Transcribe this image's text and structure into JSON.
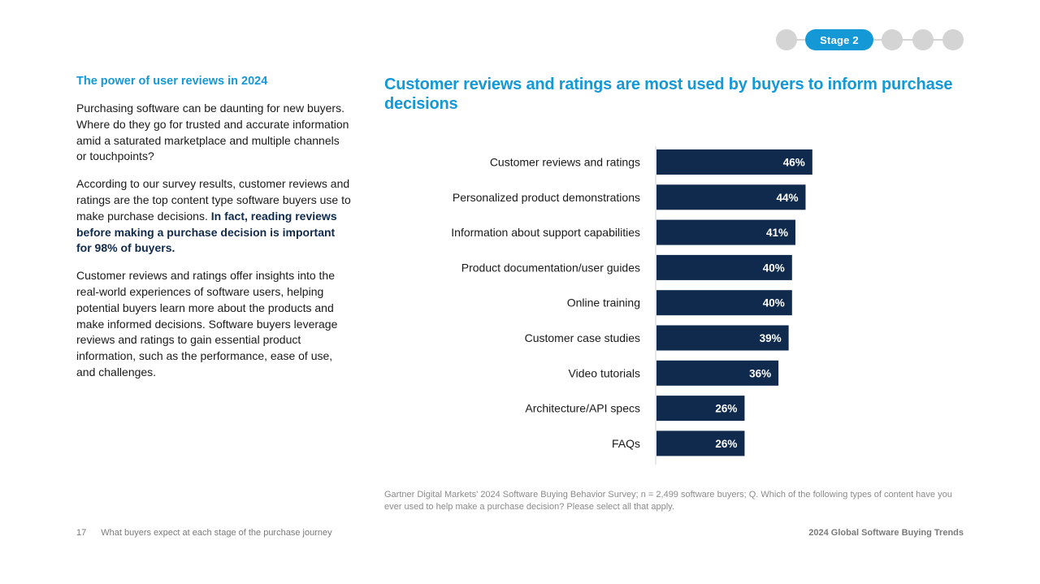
{
  "stage_nav": {
    "active_label": "Stage 2"
  },
  "side": {
    "heading": "The power of user reviews in 2024",
    "p1": "Purchasing software can be daunting for new buyers. Where do they go for trusted and accurate information amid a saturated marketplace and multiple channels or touchpoints?",
    "p2_text": "According to our survey results, customer reviews and ratings are the top content type software buyers use to make purchase decisions. ",
    "p2_strong": "In fact, reading reviews before making a purchase decision is important for 98% of buyers.",
    "p3": "Customer reviews and ratings offer insights into the real-world experiences of software users, helping potential buyers learn more about the products and make informed decisions. Software buyers leverage reviews and ratings to gain essential product information, such as the performance, ease of use, and challenges."
  },
  "chart_data": {
    "type": "bar",
    "orientation": "horizontal",
    "title": "Customer reviews and ratings are most used by buyers to inform purchase decisions",
    "categories": [
      "Customer reviews and ratings",
      "Personalized product demonstrations",
      "Information about support capabilities",
      "Product documentation/user guides",
      "Online training",
      "Customer case studies",
      "Video tutorials",
      "Architecture/API specs",
      "FAQs"
    ],
    "values": [
      46,
      44,
      41,
      40,
      40,
      39,
      36,
      26,
      26
    ],
    "data_labels": [
      "46%",
      "44%",
      "41%",
      "40%",
      "40%",
      "39%",
      "36%",
      "26%",
      "26%"
    ],
    "unit": "%",
    "xlim": [
      0,
      100
    ],
    "grid": false,
    "bar_color": "#0f2a4d"
  },
  "source": "Gartner Digital Markets' 2024 Software Buying Behavior Survey; n = 2,499 software buyers; Q. Which of the following types of content have you ever used to help make a purchase decision? Please select all that apply.",
  "footer": {
    "page_number": "17",
    "section": "What buyers expect at each stage of the purchase journey",
    "report_title": "2024 Global Software Buying Trends"
  },
  "colors": {
    "accent": "#1499d6",
    "navy": "#0f2a4d",
    "inactive_step": "#d4d4d4"
  }
}
